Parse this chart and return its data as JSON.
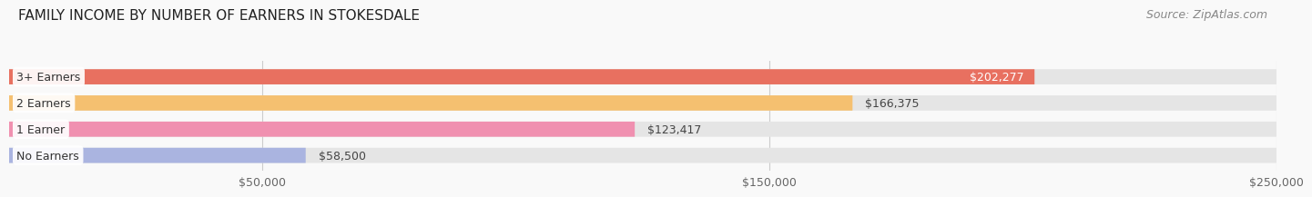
{
  "title": "FAMILY INCOME BY NUMBER OF EARNERS IN STOKESDALE",
  "source_text": "Source: ZipAtlas.com",
  "categories": [
    "No Earners",
    "1 Earner",
    "2 Earners",
    "3+ Earners"
  ],
  "values": [
    58500,
    123417,
    166375,
    202277
  ],
  "bar_colors": [
    "#aab4e0",
    "#f090b0",
    "#f5c070",
    "#e87060"
  ],
  "bar_bg_color": "#e5e5e5",
  "value_labels": [
    "$58,500",
    "$123,417",
    "$166,375",
    "$202,277"
  ],
  "label_inside": [
    false,
    false,
    false,
    true
  ],
  "xlim": [
    0,
    250000
  ],
  "xticks": [
    50000,
    150000,
    250000
  ],
  "xtick_labels": [
    "$50,000",
    "$150,000",
    "$250,000"
  ],
  "background_color": "#f9f9f9",
  "title_fontsize": 11,
  "source_fontsize": 9,
  "tick_fontsize": 9,
  "value_fontsize": 9,
  "label_fontsize": 9
}
